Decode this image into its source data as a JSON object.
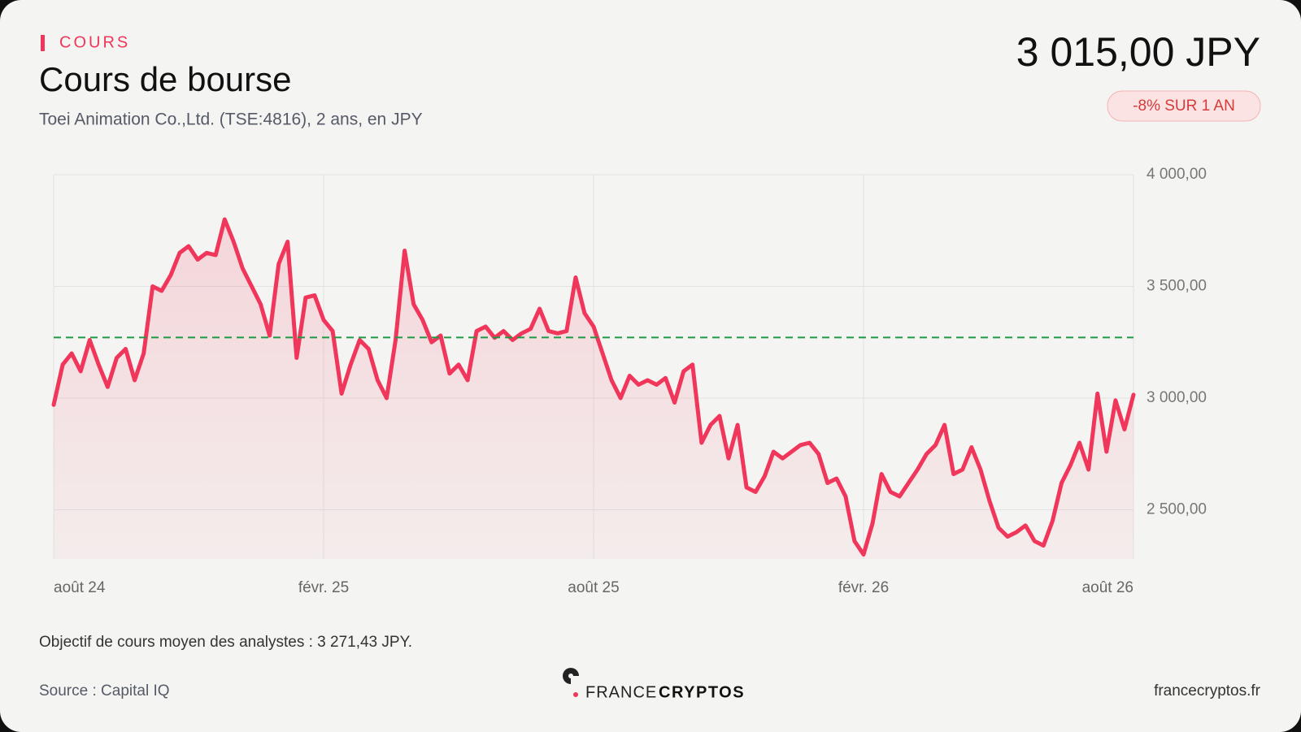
{
  "header": {
    "kicker": "COURS",
    "title": "Cours de bourse",
    "subtitle": "Toei Animation Co.,Ltd. (TSE:4816), 2 ans, en JPY",
    "price": "3 015,00 JPY",
    "change": "-8% SUR 1 AN"
  },
  "chart_data": {
    "type": "line",
    "categories": [
      "août 24",
      null,
      null,
      null,
      null,
      null,
      null,
      null,
      null,
      null,
      null,
      null,
      null,
      null,
      null,
      null,
      null,
      null,
      null,
      null,
      null,
      null,
      null,
      null,
      null,
      null,
      null,
      null,
      null,
      null,
      "févr. 25",
      null,
      null,
      null,
      null,
      null,
      null,
      null,
      null,
      null,
      null,
      null,
      null,
      null,
      null,
      null,
      null,
      null,
      null,
      null,
      null,
      null,
      null,
      null,
      null,
      null,
      null,
      null,
      null,
      null,
      "août 25",
      null,
      null,
      null,
      null,
      null,
      null,
      null,
      null,
      null,
      null,
      null,
      null,
      null,
      null,
      null,
      null,
      null,
      null,
      null,
      null,
      null,
      null,
      null,
      null,
      null,
      null,
      null,
      null,
      null,
      "févr. 26",
      null,
      null,
      null,
      null,
      null,
      null,
      null,
      null,
      null,
      null,
      null,
      null,
      null,
      null,
      null,
      null,
      null,
      null,
      null,
      null,
      null,
      null,
      null,
      null,
      null,
      null,
      null,
      null,
      null,
      "août 26"
    ],
    "series": [
      {
        "name": "Toei Animation",
        "color": "#f0365a",
        "values": [
          2970,
          3150,
          3200,
          3120,
          3260,
          3150,
          3050,
          3180,
          3220,
          3080,
          3200,
          3500,
          3480,
          3550,
          3650,
          3680,
          3620,
          3650,
          3640,
          3800,
          3700,
          3580,
          3500,
          3420,
          3280,
          3600,
          3700,
          3180,
          3450,
          3460,
          3350,
          3300,
          3020,
          3150,
          3260,
          3220,
          3080,
          3000,
          3260,
          3660,
          3420,
          3350,
          3250,
          3280,
          3110,
          3150,
          3080,
          3300,
          3320,
          3270,
          3300,
          3260,
          3290,
          3310,
          3400,
          3300,
          3290,
          3300,
          3540,
          3380,
          3320,
          3200,
          3080,
          3000,
          3100,
          3060,
          3080,
          3060,
          3090,
          2980,
          3120,
          3150,
          2800,
          2880,
          2920,
          2730,
          2880,
          2600,
          2580,
          2650,
          2760,
          2730,
          2760,
          2790,
          2800,
          2750,
          2620,
          2640,
          2560,
          2360,
          2300,
          2440,
          2660,
          2580,
          2560,
          2620,
          2680,
          2750,
          2790,
          2880,
          2660,
          2680,
          2780,
          2680,
          2540,
          2420,
          2380,
          2400,
          2430,
          2360,
          2340,
          2450,
          2620,
          2700,
          2800,
          2680,
          3020,
          2760,
          2990,
          2860,
          3015
        ]
      }
    ],
    "target": 3271.43,
    "target_color": "#1e9a45",
    "annotation": "Objectif de cours moyen des analystes : 3 271,43 JPY.",
    "ylim": [
      2280,
      4000
    ],
    "yticks": [
      {
        "value": 2500,
        "label": "2 500,00"
      },
      {
        "value": 3000,
        "label": "3 000,00"
      },
      {
        "value": 3500,
        "label": "3 500,00"
      },
      {
        "value": 4000,
        "label": "4 000,00"
      }
    ],
    "grid": true
  },
  "footer": {
    "source": "Source : Capital IQ",
    "brand_light": "FRANCE",
    "brand_bold": "CRYPTOS",
    "site": "francecryptos.fr"
  }
}
